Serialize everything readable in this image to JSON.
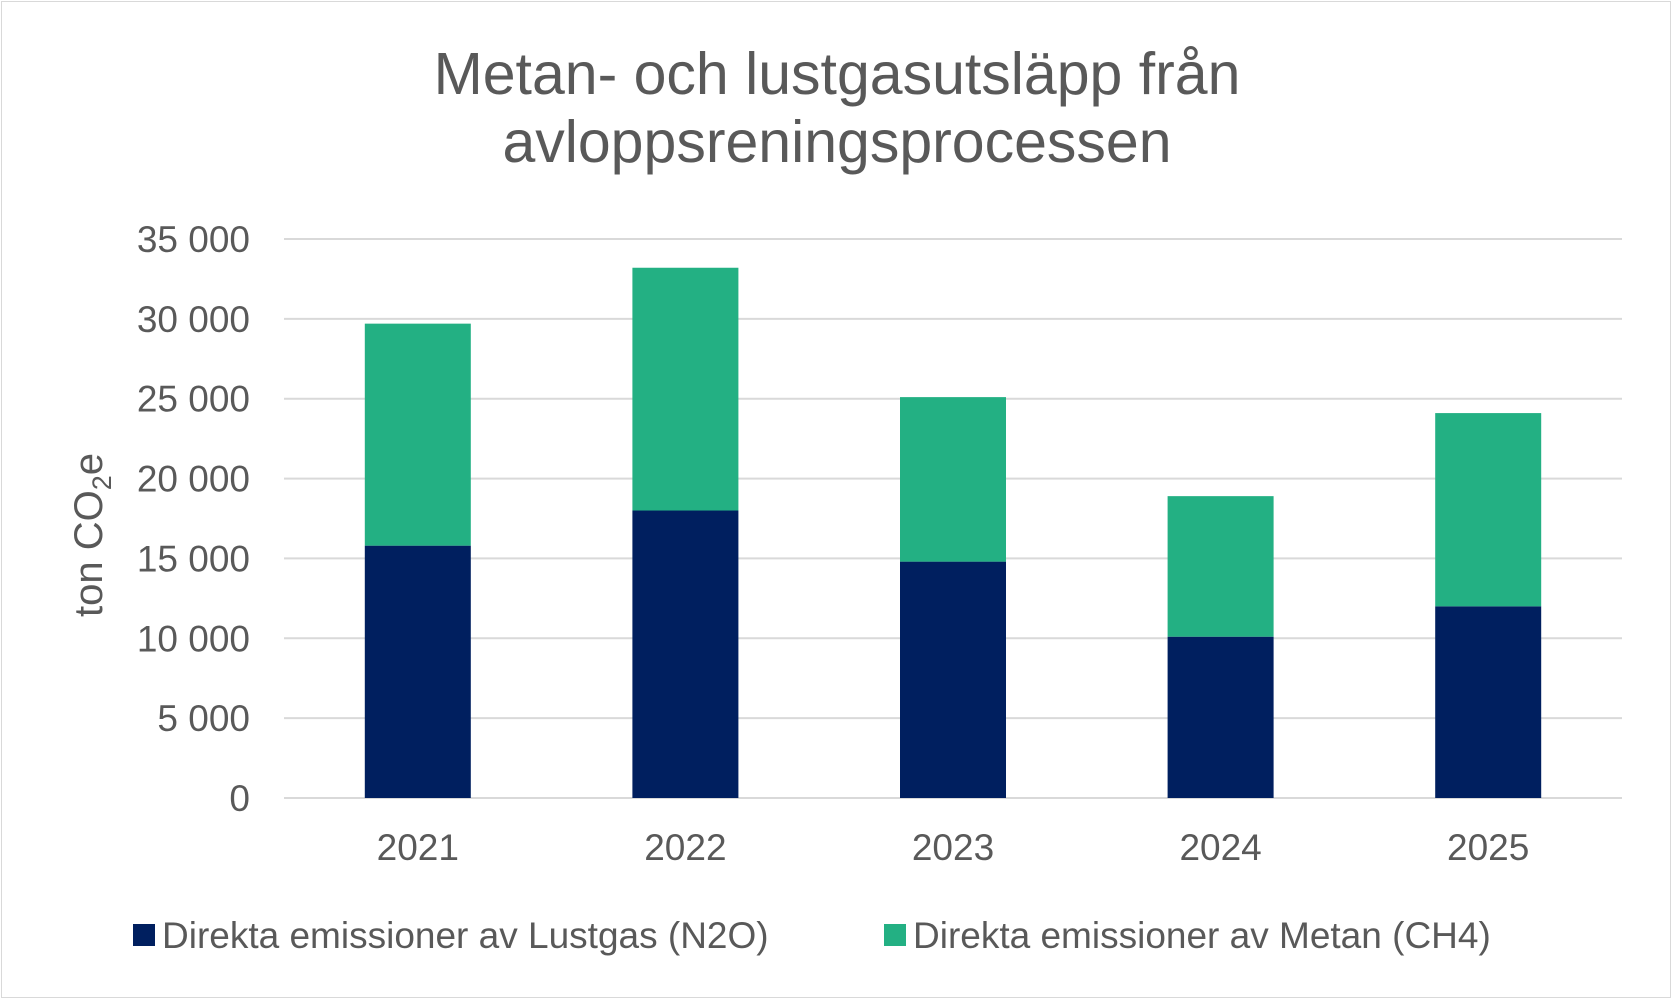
{
  "chart_data": {
    "type": "bar",
    "stacked": true,
    "title_lines": [
      "Metan- och lustgasutsläpp från",
      "avloppsreningsprocessen"
    ],
    "ylabel": {
      "prefix": "ton CO",
      "subscript": "2",
      "suffix": "e"
    },
    "xlabel": "",
    "categories": [
      "2021",
      "2022",
      "2023",
      "2024",
      "2025"
    ],
    "series": [
      {
        "name": "Direkta emissioner av Lustgas (N2O)",
        "color": "#001f5f",
        "values": [
          15800,
          18000,
          14800,
          10100,
          12000
        ]
      },
      {
        "name": "Direkta emissioner av Metan (CH4)",
        "color": "#23b083",
        "values": [
          13900,
          15200,
          10300,
          8800,
          12100
        ]
      }
    ],
    "ylim": [
      0,
      35000
    ],
    "yticks": [
      0,
      5000,
      10000,
      15000,
      20000,
      25000,
      30000,
      35000
    ],
    "ytick_labels": [
      "0",
      "5 000",
      "10 000",
      "15 000",
      "20 000",
      "25 000",
      "30 000",
      "35 000"
    ],
    "grid": true,
    "legend": "bottom"
  }
}
